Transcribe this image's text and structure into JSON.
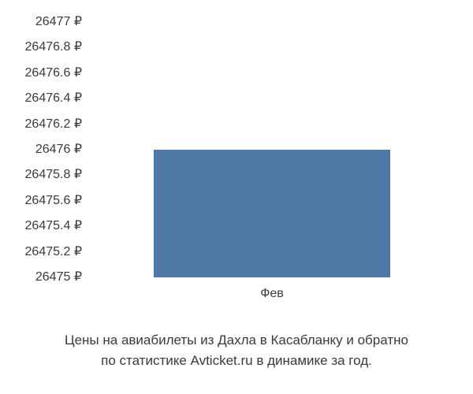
{
  "chart": {
    "type": "bar",
    "y_ticks": [
      "26477 ₽",
      "26476.8 ₽",
      "26476.6 ₽",
      "26476.4 ₽",
      "26476.2 ₽",
      "26476 ₽",
      "26475.8 ₽",
      "26475.6 ₽",
      "26475.4 ₽",
      "26475.2 ₽",
      "26475 ₽"
    ],
    "ylim": [
      26475,
      26477
    ],
    "ytick_step": 0.2,
    "x_categories": [
      "Фев"
    ],
    "values": [
      26476
    ],
    "bar_color": "#4e79a7",
    "bar_left_pct": 18,
    "bar_width_pct": 64,
    "background_color": "#ffffff",
    "text_color": "#3a3a3a",
    "tick_fontsize": 16,
    "caption_fontsize": 17
  },
  "caption": {
    "line1": "Цены на авиабилеты из Дахла в Касабланку и обратно",
    "line2": "по статистике Avticket.ru в динамике за год."
  }
}
